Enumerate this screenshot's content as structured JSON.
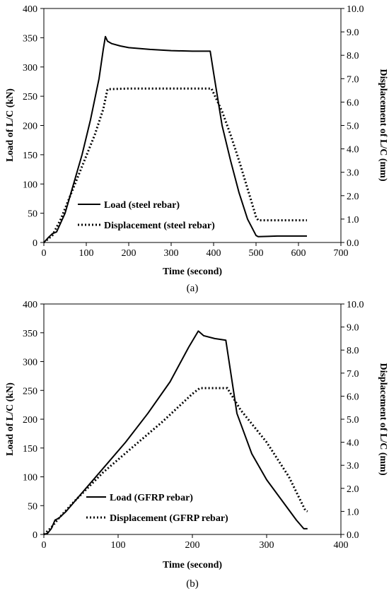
{
  "chart_data": [
    {
      "panel": "(a)",
      "type": "line",
      "xlabel": "Time (second)",
      "ylabel_left": "Load of L/C (kN)",
      "ylabel_right": "Displacement of L/C (mm)",
      "xlim": [
        0,
        700
      ],
      "xticks": [
        0,
        100,
        200,
        300,
        400,
        500,
        600,
        700
      ],
      "ylim_left": [
        0,
        400
      ],
      "yticks_left": [
        0,
        50,
        100,
        150,
        200,
        250,
        300,
        350,
        400
      ],
      "ylim_right": [
        0,
        10
      ],
      "yticks_right": [
        "0.0",
        "1.0",
        "2.0",
        "3.0",
        "4.0",
        "5.0",
        "6.0",
        "7.0",
        "8.0",
        "9.0",
        "10.0"
      ],
      "grid": false,
      "legend_position": "bottom-left",
      "series": [
        {
          "name": "Load (steel rebar)",
          "axis": "left",
          "style": "solid",
          "x": [
            0,
            10,
            20,
            30,
            50,
            70,
            90,
            110,
            130,
            140,
            145,
            150,
            160,
            180,
            200,
            250,
            300,
            350,
            392,
            400,
            420,
            440,
            460,
            480,
            500,
            505,
            550,
            600,
            620
          ],
          "y": [
            0,
            8,
            15,
            18,
            50,
            100,
            150,
            210,
            280,
            330,
            352,
            344,
            340,
            336,
            333,
            330,
            328,
            327,
            327,
            290,
            200,
            140,
            85,
            40,
            12,
            10,
            11,
            11,
            11
          ]
        },
        {
          "name": "Displacement (steel rebar)",
          "axis": "right",
          "style": "dotted",
          "x": [
            0,
            20,
            40,
            60,
            80,
            100,
            120,
            140,
            150,
            200,
            250,
            300,
            350,
            395,
            420,
            440,
            460,
            480,
            500,
            505,
            550,
            600,
            620
          ],
          "y": [
            0,
            0.3,
            1.0,
            1.9,
            2.8,
            3.7,
            4.6,
            5.7,
            6.55,
            6.58,
            6.58,
            6.58,
            6.58,
            6.58,
            5.6,
            4.6,
            3.5,
            2.3,
            1.1,
            0.95,
            0.95,
            0.95,
            0.95
          ]
        }
      ]
    },
    {
      "panel": "(b)",
      "type": "line",
      "xlabel": "Time (second)",
      "ylabel_left": "Load of L/C (kN)",
      "ylabel_right": "Displacement of L/C (mm)",
      "xlim": [
        0,
        400
      ],
      "xticks": [
        0,
        100,
        200,
        300,
        400
      ],
      "ylim_left": [
        0,
        400
      ],
      "yticks_left": [
        0,
        50,
        100,
        150,
        200,
        250,
        300,
        350,
        400
      ],
      "ylim_right": [
        0,
        10
      ],
      "yticks_right": [
        "0.0",
        "1.0",
        "2.0",
        "3.0",
        "4.0",
        "5.0",
        "6.0",
        "7.0",
        "8.0",
        "9.0",
        "10.0"
      ],
      "grid": false,
      "legend_position": "bottom-center",
      "series": [
        {
          "name": "Load (GFRP rebar)",
          "axis": "left",
          "style": "solid",
          "x": [
            0,
            5,
            10,
            15,
            20,
            30,
            50,
            80,
            110,
            140,
            170,
            195,
            208,
            215,
            230,
            245,
            260,
            280,
            300,
            320,
            340,
            350,
            355
          ],
          "y": [
            0,
            2,
            10,
            25,
            28,
            40,
            70,
            115,
            160,
            210,
            265,
            325,
            353,
            345,
            340,
            337,
            210,
            140,
            95,
            60,
            25,
            10,
            10
          ]
        },
        {
          "name": "Displacement (GFRP rebar)",
          "axis": "right",
          "style": "dotted",
          "x": [
            0,
            10,
            20,
            40,
            80,
            120,
            160,
            200,
            210,
            230,
            247,
            265,
            300,
            330,
            352,
            355
          ],
          "y": [
            0,
            0.3,
            0.7,
            1.4,
            2.7,
            3.8,
            4.9,
            6.1,
            6.35,
            6.35,
            6.35,
            5.4,
            4.0,
            2.5,
            1.05,
            1.0
          ]
        }
      ]
    }
  ]
}
